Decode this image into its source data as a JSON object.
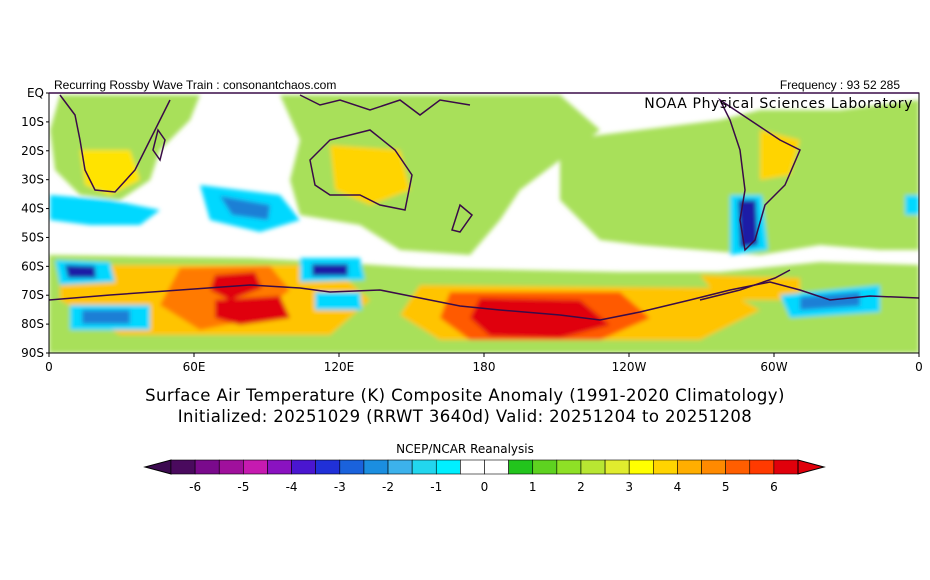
{
  "header": {
    "left_text": "Recurring Rossby Wave Train : consonantchaos.com",
    "right_text": "Frequency : 93 52 285",
    "lab_name": "NOAA Physical Sciences Laboratory"
  },
  "map": {
    "lat_labels": [
      "EQ",
      "10S",
      "20S",
      "30S",
      "40S",
      "50S",
      "60S",
      "70S",
      "80S",
      "90S"
    ],
    "lon_labels": [
      "0",
      "60E",
      "120E",
      "180",
      "120W",
      "60W",
      "0"
    ],
    "colors": {
      "strong_warm": "#e0000b",
      "warm": "#ff5a00",
      "mild_warm": "#ffc400",
      "weak_warm": "#a8e05a",
      "neutral": "#ffffff",
      "weak_cool": "#00d8ff",
      "cool": "#1b7fd5",
      "strong_cool": "#1d1aa6",
      "coastline": "#3a0b48"
    }
  },
  "titles": {
    "line1": "Surface Air Temperature (K) Composite Anomaly (1991-2020 Climatology)",
    "line2": "Initialized: 20251029 (RRWT 3640d) Valid: 20251204 to 20251208"
  },
  "colorbar": {
    "source": "NCEP/NCAR Reanalysis",
    "tick_labels": [
      "-6",
      "-5",
      "-4",
      "-3",
      "-2",
      "-1",
      "0",
      "1",
      "2",
      "3",
      "4",
      "5",
      "6"
    ],
    "colors": [
      "#4a0a5e",
      "#7a0a8c",
      "#a0109c",
      "#c61ab0",
      "#8a12c0",
      "#4a16d0",
      "#2030d8",
      "#1a62dc",
      "#1b8ee0",
      "#3cb2ec",
      "#22d6ee",
      "#00f0ff",
      "#ffffff",
      "#ffffff",
      "#22c41c",
      "#5ed220",
      "#8ee026",
      "#b8e632",
      "#e0ec2e",
      "#ffff00",
      "#ffd400",
      "#ffae00",
      "#ff8a00",
      "#ff5e00",
      "#ff3a00",
      "#e0000b"
    ]
  }
}
